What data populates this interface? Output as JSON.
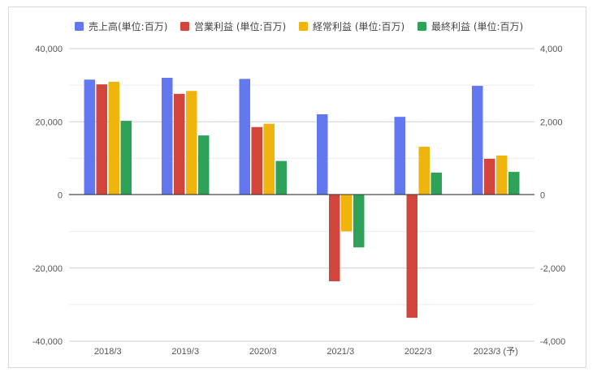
{
  "chart_data": {
    "type": "bar",
    "categories": [
      "2018/3",
      "2019/3",
      "2020/3",
      "2021/3",
      "2022/3",
      "2023/3 (予)"
    ],
    "left_axis": {
      "min": -40000,
      "max": 40000,
      "ticks": [
        "40,000",
        "20,000",
        "0",
        "-20,000",
        "-40,000"
      ]
    },
    "right_axis": {
      "min": -4000,
      "max": 4000,
      "ticks": [
        "4,000",
        "2,000",
        "0",
        "-2,000",
        "-4,000"
      ]
    },
    "gridlines": true,
    "legend_position": "top-left",
    "series": [
      {
        "name": "売上高(単位:百万)",
        "axis": "left",
        "color": "#6378f0",
        "values": [
          31500,
          32000,
          31700,
          22000,
          21300,
          29800
        ]
      },
      {
        "name": "営業利益 (単位:百万)",
        "axis": "right",
        "color": "#d2453b",
        "values": [
          3020,
          2760,
          1850,
          -2380,
          -3380,
          980
        ]
      },
      {
        "name": "経常利益 (単位:百万)",
        "axis": "right",
        "color": "#f0b50c",
        "values": [
          3090,
          2840,
          1940,
          -1010,
          1310,
          1070
        ]
      },
      {
        "name": "最終利益 (単位:百万)",
        "axis": "right",
        "color": "#2fa25a",
        "values": [
          2020,
          1620,
          920,
          -1450,
          600,
          620
        ]
      }
    ]
  }
}
